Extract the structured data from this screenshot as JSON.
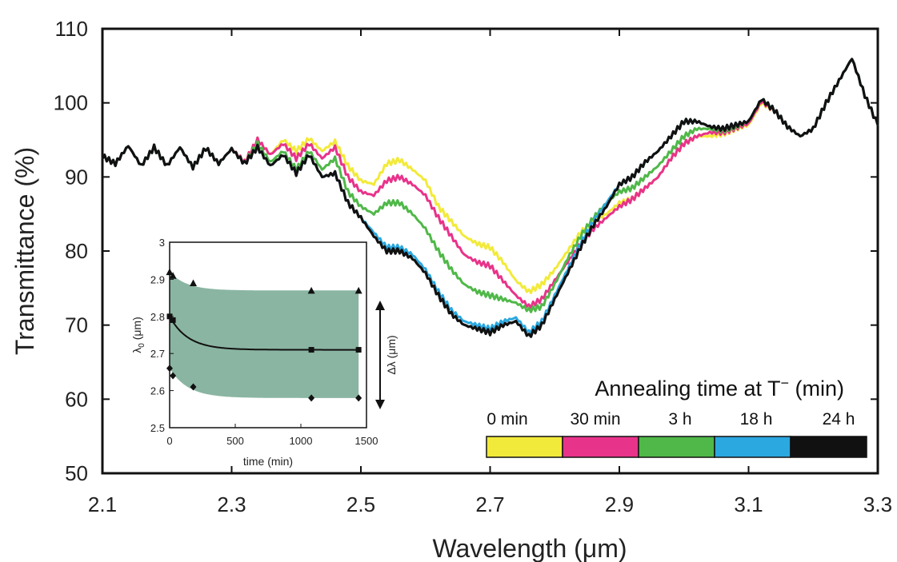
{
  "chart_data": [
    {
      "type": "line",
      "title": "",
      "xlabel": "Wavelength (μm)",
      "ylabel": "Transmittance (%)",
      "xlim": [
        2.1,
        3.3
      ],
      "ylim": [
        50,
        110
      ],
      "x_ticks": [
        "2.1",
        "2.3",
        "2.5",
        "2.7",
        "2.9",
        "3.1",
        "3.3"
      ],
      "y_ticks": [
        "50",
        "60",
        "70",
        "80",
        "90",
        "100",
        "110"
      ],
      "grid": false,
      "x": [
        2.1,
        2.12,
        2.14,
        2.16,
        2.18,
        2.2,
        2.22,
        2.24,
        2.26,
        2.28,
        2.3,
        2.32,
        2.34,
        2.36,
        2.38,
        2.4,
        2.42,
        2.44,
        2.46,
        2.48,
        2.5,
        2.52,
        2.54,
        2.56,
        2.58,
        2.6,
        2.62,
        2.64,
        2.66,
        2.68,
        2.7,
        2.72,
        2.74,
        2.76,
        2.78,
        2.8,
        2.82,
        2.84,
        2.86,
        2.88,
        2.9,
        2.92,
        2.94,
        2.96,
        2.98,
        3.0,
        3.02,
        3.04,
        3.06,
        3.08,
        3.1,
        3.12,
        3.14,
        3.16,
        3.18,
        3.2,
        3.22,
        3.24,
        3.26,
        3.28,
        3.3
      ],
      "series": [
        {
          "name": "0 min",
          "color": "#f2ea3a",
          "values": [
            92.8,
            91.8,
            94.2,
            91.5,
            94.0,
            91.5,
            94.0,
            91.3,
            93.9,
            91.8,
            93.8,
            92.0,
            95.0,
            93.0,
            95.0,
            93.5,
            95.2,
            93.5,
            94.8,
            91.5,
            89.5,
            89.0,
            91.8,
            92.3,
            91.0,
            89.5,
            86.0,
            84.0,
            82.0,
            81.0,
            80.5,
            78.5,
            76.0,
            74.5,
            75.5,
            77.5,
            80.0,
            82.5,
            84.0,
            85.0,
            86.5,
            87.0,
            88.5,
            90.0,
            92.5,
            94.5,
            95.5,
            95.5,
            95.8,
            96.5,
            97.0,
            100.0,
            99.0,
            96.8,
            95.5,
            96.5,
            100.0,
            103.0,
            106.0,
            101.0,
            97.0
          ]
        },
        {
          "name": "30 min",
          "color": "#e8338a",
          "values": [
            92.8,
            91.8,
            94.2,
            91.5,
            94.0,
            91.5,
            94.0,
            91.3,
            93.9,
            91.8,
            93.8,
            92.0,
            95.0,
            93.0,
            94.5,
            92.5,
            94.5,
            92.5,
            94.0,
            90.0,
            88.0,
            87.5,
            89.5,
            90.0,
            89.0,
            87.5,
            84.5,
            82.0,
            79.5,
            78.5,
            78.0,
            76.0,
            74.0,
            72.5,
            73.5,
            76.0,
            78.5,
            81.0,
            83.0,
            84.5,
            86.0,
            87.0,
            88.5,
            90.0,
            92.5,
            94.5,
            95.5,
            96.0,
            96.0,
            96.6,
            97.2,
            100.2,
            99.0,
            96.8,
            95.5,
            96.5,
            100.0,
            103.0,
            106.0,
            101.0,
            97.0
          ]
        },
        {
          "name": "3 h",
          "color": "#4fb848",
          "values": [
            92.8,
            91.8,
            94.2,
            91.5,
            94.0,
            91.5,
            94.0,
            91.3,
            93.9,
            91.8,
            93.8,
            91.8,
            94.5,
            92.0,
            93.5,
            91.0,
            93.5,
            91.0,
            92.5,
            88.0,
            86.0,
            85.0,
            86.5,
            86.5,
            85.0,
            83.0,
            80.0,
            77.5,
            75.5,
            74.5,
            74.0,
            73.5,
            73.0,
            72.0,
            72.5,
            75.5,
            79.0,
            82.0,
            84.5,
            86.5,
            88.0,
            88.5,
            90.0,
            91.5,
            93.5,
            95.5,
            96.5,
            96.5,
            96.3,
            96.8,
            97.5,
            100.5,
            99.0,
            96.8,
            95.5,
            96.5,
            100.0,
            103.0,
            106.0,
            101.0,
            97.0
          ]
        },
        {
          "name": "18 h",
          "color": "#2ba8e0",
          "values": [
            92.8,
            91.8,
            94.2,
            91.5,
            94.0,
            91.5,
            94.0,
            91.3,
            93.9,
            91.8,
            93.8,
            91.8,
            94.0,
            91.5,
            93.0,
            90.5,
            93.0,
            90.0,
            90.5,
            86.5,
            84.5,
            82.5,
            80.5,
            80.5,
            79.5,
            77.5,
            74.5,
            72.0,
            70.5,
            70.0,
            69.5,
            70.5,
            71.0,
            69.0,
            70.5,
            74.0,
            77.5,
            81.0,
            84.0,
            86.5,
            89.0,
            90.0,
            92.0,
            93.5,
            95.5,
            97.5,
            97.5,
            96.8,
            96.5,
            97.0,
            97.5,
            100.5,
            99.0,
            96.8,
            95.5,
            96.5,
            100.0,
            103.0,
            106.0,
            101.0,
            97.0
          ]
        },
        {
          "name": "24 h",
          "color": "#111111",
          "values": [
            92.8,
            91.8,
            94.2,
            91.5,
            94.0,
            91.5,
            94.0,
            91.3,
            93.9,
            91.8,
            93.8,
            91.8,
            94.0,
            91.5,
            93.0,
            90.5,
            93.0,
            90.0,
            90.5,
            86.5,
            84.5,
            82.0,
            80.0,
            80.0,
            79.0,
            77.0,
            74.0,
            71.5,
            70.0,
            69.5,
            69.0,
            70.0,
            70.5,
            68.5,
            70.0,
            73.5,
            77.0,
            80.5,
            83.5,
            86.0,
            89.0,
            90.0,
            92.0,
            93.5,
            95.5,
            97.5,
            97.5,
            96.8,
            96.5,
            97.0,
            97.5,
            100.5,
            99.0,
            96.8,
            95.5,
            96.5,
            100.0,
            103.0,
            106.0,
            101.0,
            97.0
          ]
        }
      ],
      "legend": {
        "title": "Annealing time at T",
        "title_superscript": "−",
        "title_suffix": " (min)",
        "placement": "bottom-right",
        "entries": [
          {
            "label": "0 min",
            "color": "#f2ea3a"
          },
          {
            "label": "30 min",
            "color": "#e8338a"
          },
          {
            "label": "3 h",
            "color": "#4fb848"
          },
          {
            "label": "18 h",
            "color": "#2ba8e0"
          },
          {
            "label": "24 h",
            "color": "#111111"
          }
        ]
      }
    },
    {
      "type": "scatter",
      "title": "",
      "xlabel": "time (min)",
      "ylabel": "λ",
      "ylabel_subscript": "0",
      "ylabel_suffix": " (μm)",
      "right_label": "Δλ (μm)",
      "xlim": [
        0,
        1500
      ],
      "ylim": [
        2.5,
        3.0
      ],
      "x_ticks": [
        "0",
        "500",
        "1000",
        "1500"
      ],
      "y_ticks": [
        "2.5",
        "2.6",
        "2.7",
        "2.8",
        "2.9",
        "3"
      ],
      "band_color": "#8ab5a2",
      "series": [
        {
          "name": "",
          "marker": "triangle",
          "x": [
            0,
            25,
            180,
            1080,
            1440
          ],
          "values": [
            2.92,
            2.91,
            2.89,
            2.87,
            2.87
          ]
        },
        {
          "name": "",
          "marker": "square",
          "x": [
            0,
            25,
            1080,
            1440
          ],
          "values": [
            2.8,
            2.79,
            2.71,
            2.71
          ]
        },
        {
          "name": "",
          "marker": "diamond",
          "x": [
            0,
            25,
            180,
            1080,
            1440
          ],
          "values": [
            2.66,
            2.64,
            2.61,
            2.58,
            2.58
          ]
        }
      ]
    }
  ]
}
